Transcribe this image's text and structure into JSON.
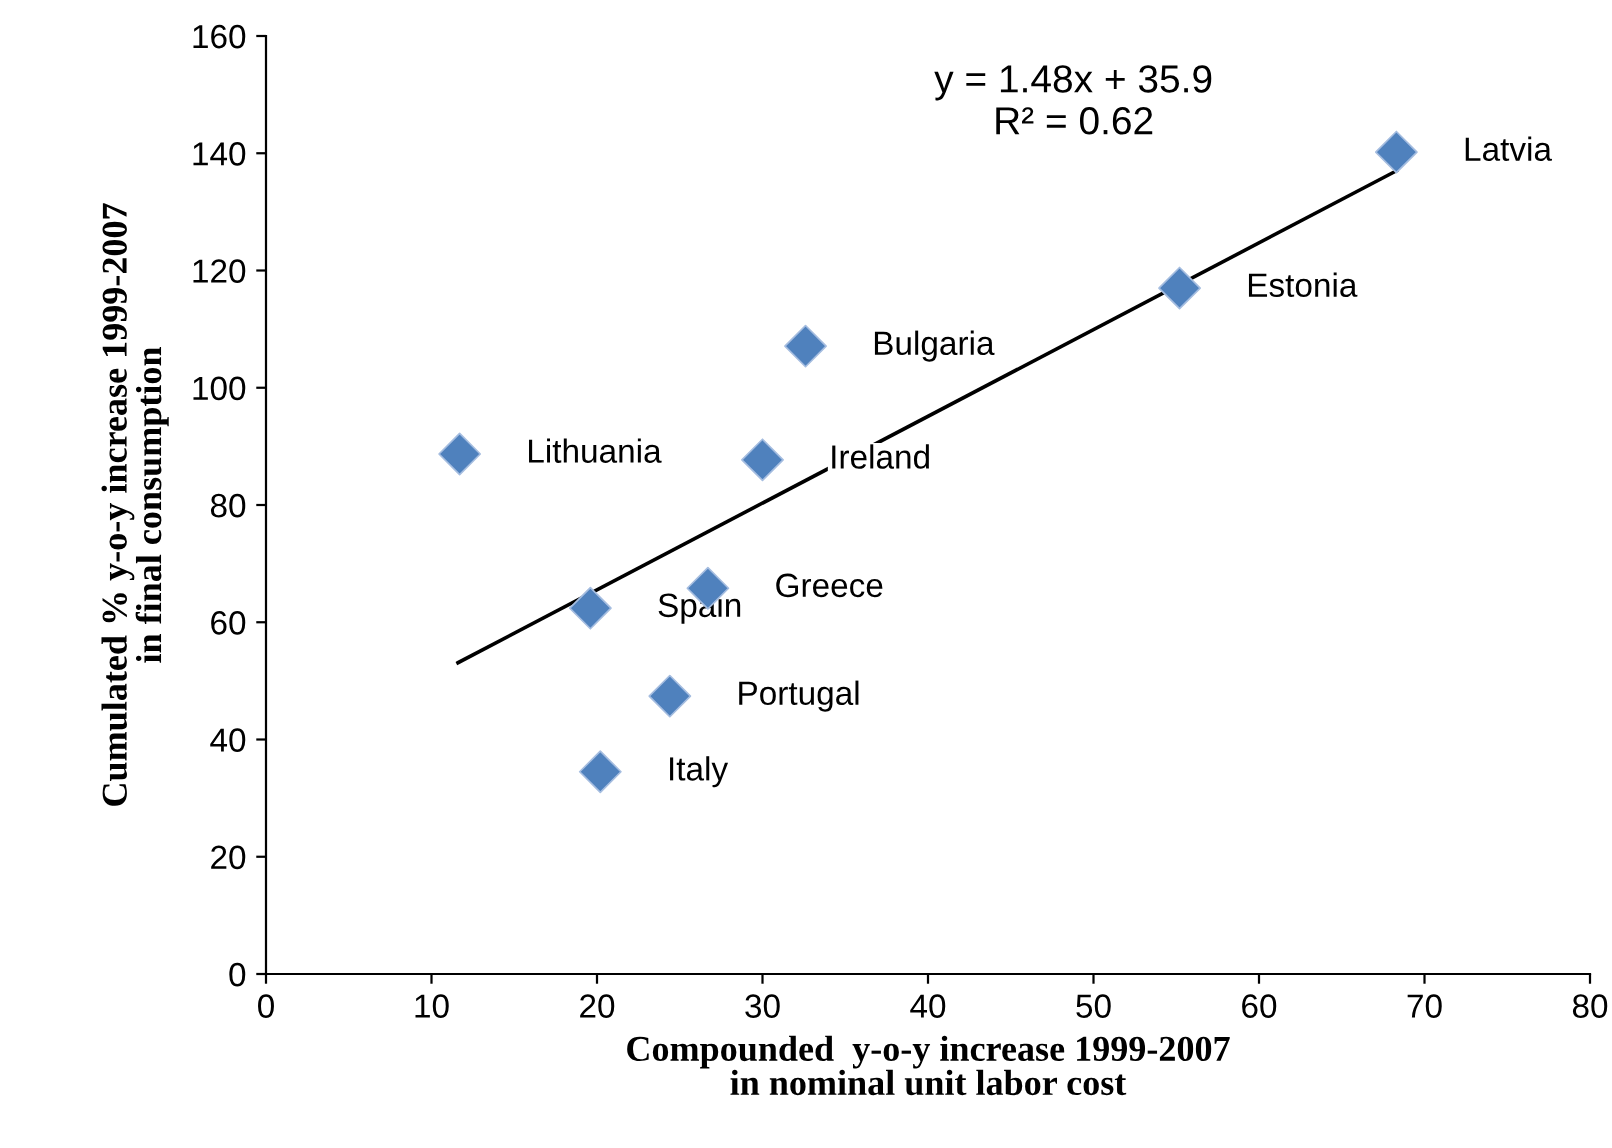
{
  "chart_data": {
    "type": "scatter",
    "xlabel": "Compounded  y-o-y increase 1999-2007\nin nominal unit labor cost",
    "ylabel": "Cumulated % y-o-y increase 1999-2007\nin final consumption",
    "xlim": [
      0,
      80
    ],
    "xticks": [
      0,
      10,
      20,
      30,
      40,
      50,
      60,
      70,
      80
    ],
    "ylim": [
      0,
      160
    ],
    "yticks": [
      0,
      20,
      40,
      60,
      80,
      100,
      120,
      140,
      160
    ],
    "grid": false,
    "legend": false,
    "marker": "diamond",
    "series": [
      {
        "color": "#4f81bd",
        "x": [
          68.3,
          55.2,
          32.6,
          11.7,
          30.0,
          26.7,
          19.6,
          24.4,
          20.2
        ],
        "values": [
          140.2,
          117.0,
          107.1,
          88.7,
          87.7,
          65.8,
          62.4,
          47.4,
          34.5
        ]
      },
      {
        "type": "line",
        "color": "#000000",
        "marker": "none",
        "line_style": "solid",
        "x": [
          11.6,
          68.3
        ],
        "values": [
          53.1,
          137.0
        ]
      }
    ],
    "annotations": [
      {
        "text": "Latvia",
        "x": 68.3,
        "y": 140.2
      },
      {
        "text": "Estonia",
        "x": 55.2,
        "y": 117.0
      },
      {
        "text": "Bulgaria",
        "x": 32.6,
        "y": 107.1
      },
      {
        "text": "Lithuania",
        "x": 11.7,
        "y": 88.7
      },
      {
        "text": "Ireland",
        "x": 30.0,
        "y": 87.7
      },
      {
        "text": "Greece",
        "x": 26.7,
        "y": 65.8
      },
      {
        "text": "Spain",
        "x": 19.6,
        "y": 62.4
      },
      {
        "text": "Portugal",
        "x": 24.4,
        "y": 47.4
      },
      {
        "text": "Italy",
        "x": 20.2,
        "y": 34.5
      },
      "y = 1.48x + 35.9\nR² = 0.62"
    ]
  }
}
